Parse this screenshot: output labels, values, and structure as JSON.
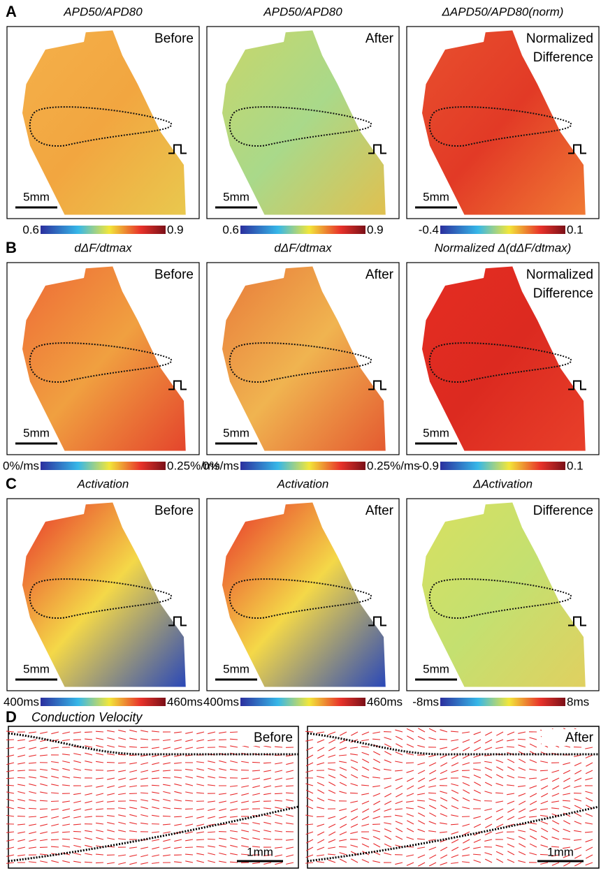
{
  "panels": [
    {
      "letter": "A",
      "maps": [
        {
          "title": "APD50/APD80",
          "label": [
            "Before"
          ],
          "scale": "5mm",
          "colorbar": {
            "min": "0.6",
            "max": "0.9"
          }
        },
        {
          "title": "APD50/APD80",
          "label": [
            "After"
          ],
          "scale": "5mm",
          "colorbar": {
            "min": "0.6",
            "max": "0.9"
          }
        },
        {
          "title": "ΔAPD50/APD80(norm)",
          "label": [
            "Normalized",
            "Difference"
          ],
          "scale": "5mm",
          "colorbar": {
            "min": "-0.4",
            "max": "0.1"
          }
        }
      ]
    },
    {
      "letter": "B",
      "maps": [
        {
          "title": "dΔF/dtmax",
          "label": [
            "Before"
          ],
          "scale": "5mm",
          "colorbar": {
            "min": "0%/ms",
            "max": "0.25%/ms"
          }
        },
        {
          "title": "dΔF/dtmax",
          "label": [
            "After"
          ],
          "scale": "5mm",
          "colorbar": {
            "min": "0%/ms",
            "max": "0.25%/ms"
          }
        },
        {
          "title": "Normalized Δ(dΔF/dtmax)",
          "label": [
            "Normalized",
            "Difference"
          ],
          "scale": "5mm",
          "colorbar": {
            "min": "-0.9",
            "max": "0.1"
          }
        }
      ]
    },
    {
      "letter": "C",
      "maps": [
        {
          "title": "Activation",
          "label": [
            "Before"
          ],
          "scale": "5mm",
          "colorbar": {
            "min": "400ms",
            "max": "460ms"
          }
        },
        {
          "title": "Activation",
          "label": [
            "After"
          ],
          "scale": "5mm",
          "colorbar": {
            "min": "400ms",
            "max": "460ms"
          }
        },
        {
          "title": "ΔActivation",
          "label": [
            "Difference"
          ],
          "scale": "5mm",
          "colorbar": {
            "min": "-8ms",
            "max": "8ms"
          }
        }
      ]
    }
  ],
  "cv": {
    "letter": "D",
    "title": "Conduction Velocity",
    "maps": [
      {
        "label": "Before",
        "scale": "1mm"
      },
      {
        "label": "After",
        "scale": "1mm"
      }
    ]
  }
}
